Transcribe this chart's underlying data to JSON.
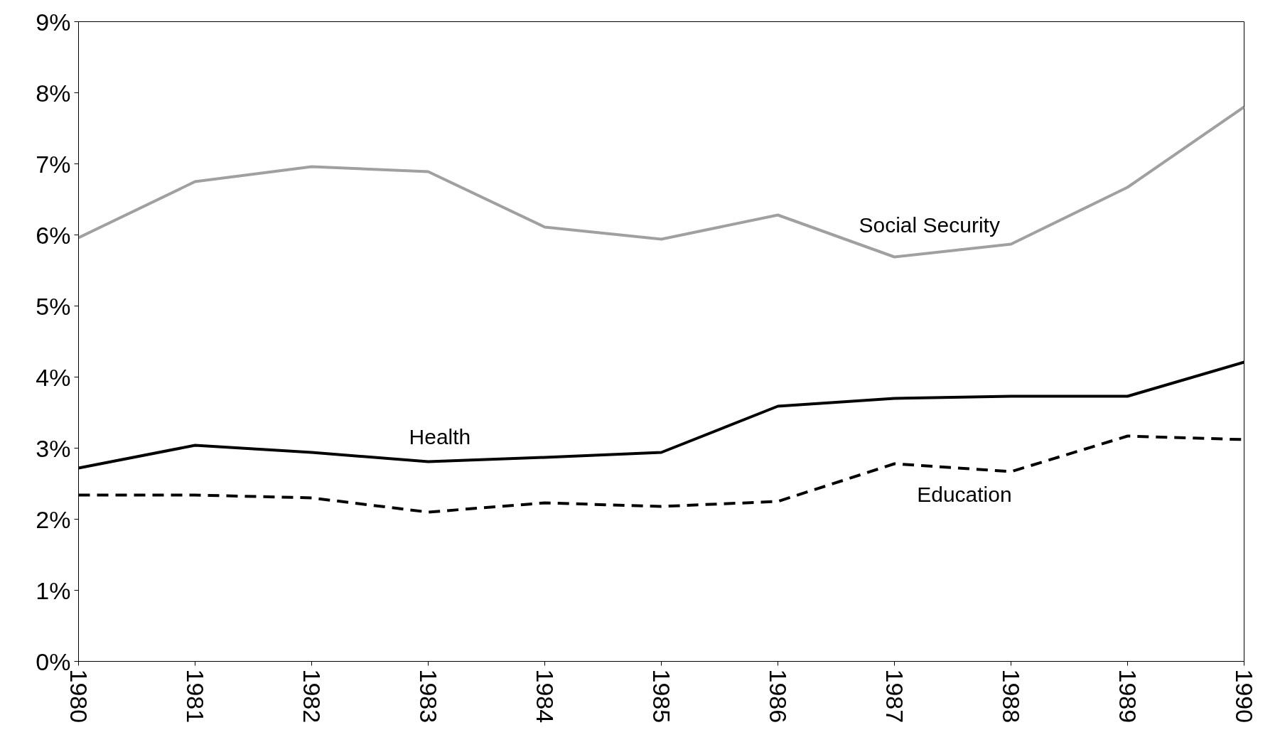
{
  "chart_data": {
    "type": "line",
    "x": [
      1980,
      1981,
      1982,
      1983,
      1984,
      1985,
      1986,
      1987,
      1988,
      1989,
      1990
    ],
    "xlim": [
      1980,
      1990
    ],
    "xticks": [
      1980,
      1981,
      1982,
      1983,
      1984,
      1985,
      1986,
      1987,
      1988,
      1989,
      1990
    ],
    "ylim": [
      0,
      9
    ],
    "yticks": [
      {
        "value": 0,
        "label": "0%"
      },
      {
        "value": 1,
        "label": "1%"
      },
      {
        "value": 2,
        "label": "2%"
      },
      {
        "value": 3,
        "label": "3%"
      },
      {
        "value": 4,
        "label": "4%"
      },
      {
        "value": 5,
        "label": "5%"
      },
      {
        "value": 6,
        "label": "6%"
      },
      {
        "value": 7,
        "label": "7%"
      },
      {
        "value": 8,
        "label": "8%"
      },
      {
        "value": 9,
        "label": "9%"
      }
    ],
    "grid": false,
    "marker": "none",
    "series": [
      {
        "name": "Social Security",
        "color": "#a0a0a0",
        "line_style": "solid",
        "values": [
          5.96,
          6.75,
          6.96,
          6.89,
          6.11,
          5.94,
          6.28,
          5.69,
          5.87,
          6.67,
          7.8
        ]
      },
      {
        "name": "Health",
        "color": "#000000",
        "line_style": "solid",
        "values": [
          2.72,
          3.04,
          2.94,
          2.81,
          2.87,
          2.94,
          3.59,
          3.7,
          3.73,
          3.73,
          4.21
        ]
      },
      {
        "name": "Education",
        "color": "#000000",
        "line_style": "dashed",
        "values": [
          2.34,
          2.34,
          2.3,
          2.1,
          2.23,
          2.18,
          2.25,
          2.78,
          2.67,
          3.17,
          3.12
        ]
      }
    ]
  }
}
